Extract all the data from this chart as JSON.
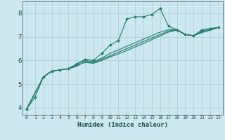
{
  "xlabel": "Humidex (Indice chaleur)",
  "background_color": "#cce8ec",
  "grid_color": "#aaccd4",
  "line_color": "#1a7a6e",
  "xlim": [
    -0.5,
    23.5
  ],
  "ylim": [
    3.7,
    8.5
  ],
  "xticks": [
    0,
    1,
    2,
    3,
    4,
    5,
    6,
    7,
    8,
    9,
    10,
    11,
    12,
    13,
    14,
    15,
    16,
    17,
    18,
    19,
    20,
    21,
    22,
    23
  ],
  "yticks": [
    4,
    5,
    6,
    7,
    8
  ],
  "lines": [
    {
      "x": [
        0,
        1,
        2,
        3,
        4,
        5,
        6,
        7,
        8,
        9,
        10,
        11,
        12,
        13,
        14,
        15,
        16,
        17,
        18,
        19,
        20,
        21,
        22,
        23
      ],
      "y": [
        3.95,
        4.45,
        5.3,
        5.55,
        5.6,
        5.65,
        5.85,
        6.05,
        6.0,
        6.3,
        6.65,
        6.85,
        7.75,
        7.85,
        7.85,
        7.95,
        8.2,
        7.45,
        7.3,
        7.1,
        7.05,
        7.3,
        7.35,
        7.4
      ],
      "marker": true
    },
    {
      "x": [
        0,
        2,
        3,
        4,
        5,
        6,
        7,
        8,
        9,
        10,
        11,
        12,
        13,
        14,
        15,
        16,
        17,
        18,
        19,
        20,
        21,
        22,
        23
      ],
      "y": [
        3.95,
        5.3,
        5.55,
        5.6,
        5.65,
        5.75,
        5.95,
        5.9,
        6.05,
        6.2,
        6.35,
        6.5,
        6.65,
        6.8,
        6.95,
        7.1,
        7.25,
        7.3,
        7.1,
        7.05,
        7.2,
        7.3,
        7.4
      ],
      "marker": false
    },
    {
      "x": [
        0,
        2,
        3,
        4,
        5,
        6,
        7,
        8,
        9,
        10,
        11,
        12,
        13,
        14,
        15,
        16,
        17,
        18,
        19,
        20,
        21,
        22,
        23
      ],
      "y": [
        3.95,
        5.3,
        5.55,
        5.6,
        5.65,
        5.8,
        5.92,
        5.88,
        6.0,
        6.15,
        6.28,
        6.42,
        6.57,
        6.72,
        6.88,
        7.04,
        7.2,
        7.28,
        7.1,
        7.05,
        7.18,
        7.28,
        7.4
      ],
      "marker": false
    },
    {
      "x": [
        0,
        2,
        3,
        4,
        5,
        6,
        7,
        8,
        9,
        10,
        11,
        12,
        13,
        14,
        15,
        16,
        17,
        18,
        19,
        20,
        21,
        22,
        23
      ],
      "y": [
        3.95,
        5.3,
        5.55,
        5.6,
        5.65,
        5.85,
        6.0,
        5.95,
        6.1,
        6.3,
        6.45,
        6.6,
        6.75,
        6.9,
        7.05,
        7.2,
        7.3,
        7.32,
        7.1,
        7.05,
        7.25,
        7.35,
        7.4
      ],
      "marker": false
    }
  ]
}
